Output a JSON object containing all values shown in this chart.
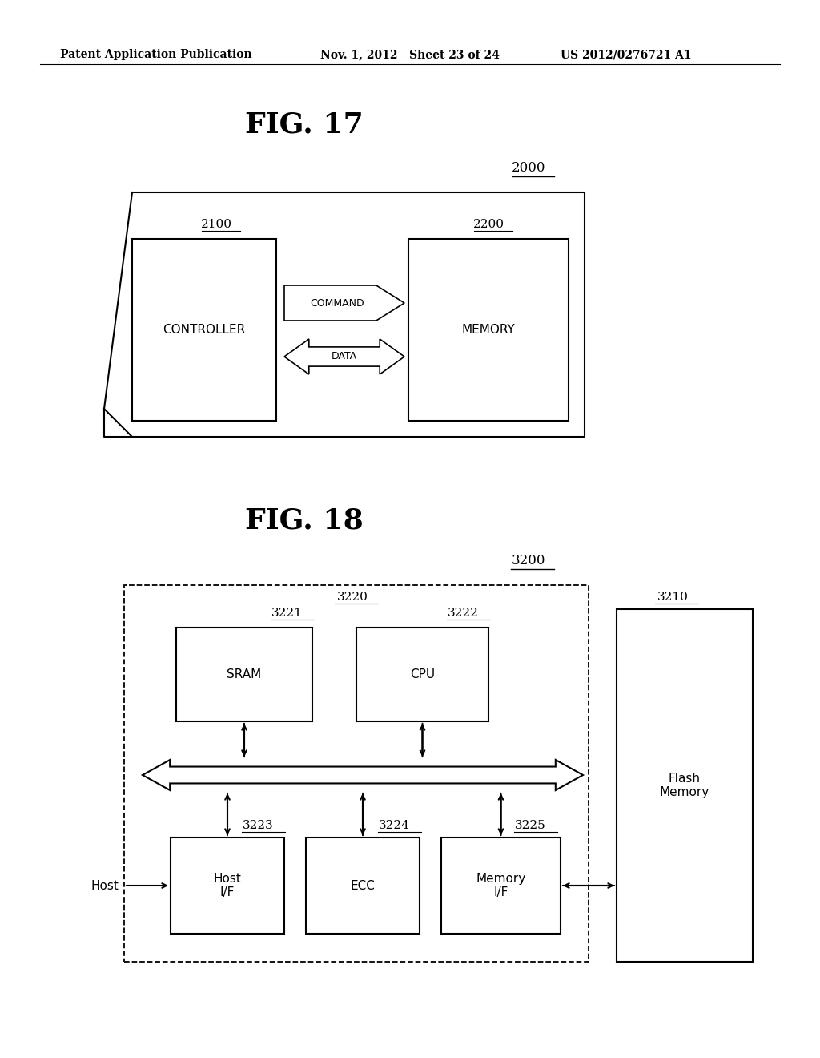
{
  "bg_color": "#ffffff",
  "header_left": "Patent Application Publication",
  "header_mid": "Nov. 1, 2012   Sheet 23 of 24",
  "header_right": "US 2012/0276721 A1",
  "fig17_title": "FIG. 17",
  "fig18_title": "FIG. 18",
  "label_2000": "2000",
  "label_2100": "2100",
  "label_2200": "2200",
  "label_3200": "3200",
  "label_3210": "3210",
  "label_3220": "3220",
  "label_3221": "3221",
  "label_3222": "3222",
  "label_3223": "3223",
  "label_3224": "3224",
  "label_3225": "3225",
  "text_controller": "CONTROLLER",
  "text_memory": "MEMORY",
  "text_command": "COMMAND",
  "text_data": "DATA",
  "text_sram": "SRAM",
  "text_cpu": "CPU",
  "text_host_if": "Host\nI/F",
  "text_ecc": "ECC",
  "text_mem_if": "Memory\nI/F",
  "text_flash_memory": "Flash\nMemory",
  "text_host": "Host"
}
